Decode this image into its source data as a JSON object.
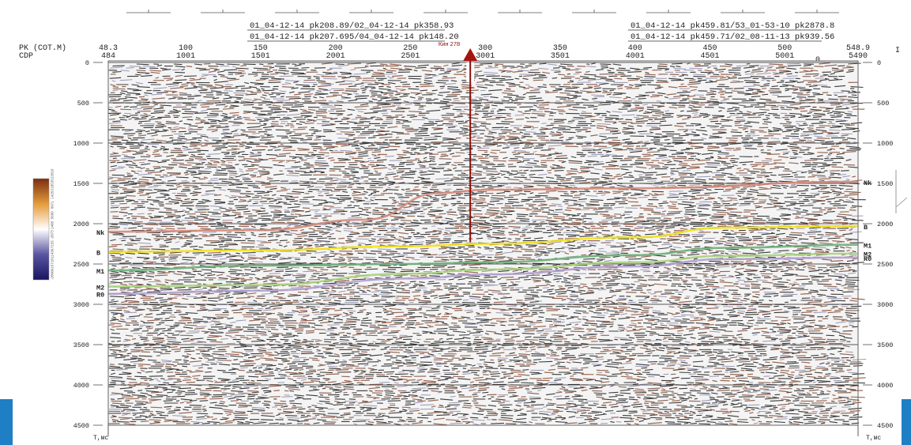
{
  "header": {
    "lines_left": [
      "01_04-12-14 pk208.89/02_04-12-14 pk358.93",
      "01_04-12-14 pk207.695/04_04-12-14 pk148.20"
    ],
    "lines_right": [
      "01_04-12-14 pk459.81/53_01-53-10 pk2878.8",
      "01_04-12-14 pk459.71/02_08-11-13 pk939.56"
    ],
    "pk_label": "PK (COT.M)",
    "cdp_label": "CDP",
    "right_edge_label": "I",
    "pk_ticks": [
      "48.3",
      "100",
      "150",
      "200",
      "250",
      "300",
      "350",
      "400",
      "450",
      "500",
      "548.9"
    ],
    "cdp_ticks": [
      "484",
      "1001",
      "1501",
      "2001",
      "2501",
      "3001",
      "3501",
      "4001",
      "4501",
      "5001",
      "5490"
    ],
    "zero_label": "0",
    "well": {
      "name": "Кин 278"
    }
  },
  "chart_data": {
    "type": "seismic-section",
    "yaxis": {
      "label": "T,мс",
      "ticks": [
        "0",
        "500",
        "1000",
        "1500",
        "2000",
        "2500",
        "3000",
        "3500",
        "4000",
        "4500"
      ],
      "ylim": [
        0,
        4500
      ],
      "grid": true
    },
    "xaxis": {
      "pk_range": [
        48.3,
        548.9
      ],
      "cdp_range": [
        484,
        5490
      ]
    },
    "horizons": [
      {
        "name": "Nk",
        "color": "#d48a7a",
        "left_label": "Nk",
        "right_label": "Nk",
        "points": [
          [
            48.3,
            2100
          ],
          [
            150,
            2080
          ],
          [
            220,
            1950
          ],
          [
            270,
            1620
          ],
          [
            300,
            1580
          ],
          [
            400,
            1560
          ],
          [
            548.9,
            1480
          ]
        ]
      },
      {
        "name": "B",
        "color": "#f2e21b",
        "left_label": "B",
        "right_label": "B",
        "points": [
          [
            48.3,
            2350
          ],
          [
            150,
            2330
          ],
          [
            250,
            2280
          ],
          [
            300,
            2250
          ],
          [
            400,
            2170
          ],
          [
            460,
            2050
          ],
          [
            548.9,
            2030
          ]
        ]
      },
      {
        "name": "M1",
        "color": "#6fb07a",
        "left_label": "M1",
        "right_label": "M1",
        "points": [
          [
            48.3,
            2580
          ],
          [
            150,
            2520
          ],
          [
            250,
            2500
          ],
          [
            300,
            2480
          ],
          [
            400,
            2390
          ],
          [
            460,
            2300
          ],
          [
            548.9,
            2260
          ]
        ]
      },
      {
        "name": "M2",
        "color": "#a9d27e",
        "left_label": "M2",
        "right_label": "M2",
        "points": [
          [
            48.3,
            2780
          ],
          [
            150,
            2760
          ],
          [
            250,
            2620
          ],
          [
            300,
            2570
          ],
          [
            400,
            2480
          ],
          [
            460,
            2400
          ],
          [
            548.9,
            2370
          ]
        ]
      },
      {
        "name": "R0",
        "color": "#b2a1d0",
        "left_label": "R0",
        "right_label": "R0",
        "points": [
          [
            48.3,
            2870
          ],
          [
            150,
            2830
          ],
          [
            250,
            2680
          ],
          [
            300,
            2630
          ],
          [
            400,
            2530
          ],
          [
            460,
            2440
          ],
          [
            548.9,
            2420
          ]
        ]
      }
    ],
    "colorbar": {
      "tick_labels": [
        "-20000",
        "-15718",
        "-11436",
        "-7155",
        "-2873",
        "1408",
        "5690",
        "9971",
        "14253",
        "18535",
        "22816"
      ],
      "colors": [
        "#1a1560",
        "#5a55a0",
        "#ffffff",
        "#e59b3c",
        "#7a2e10"
      ]
    }
  }
}
